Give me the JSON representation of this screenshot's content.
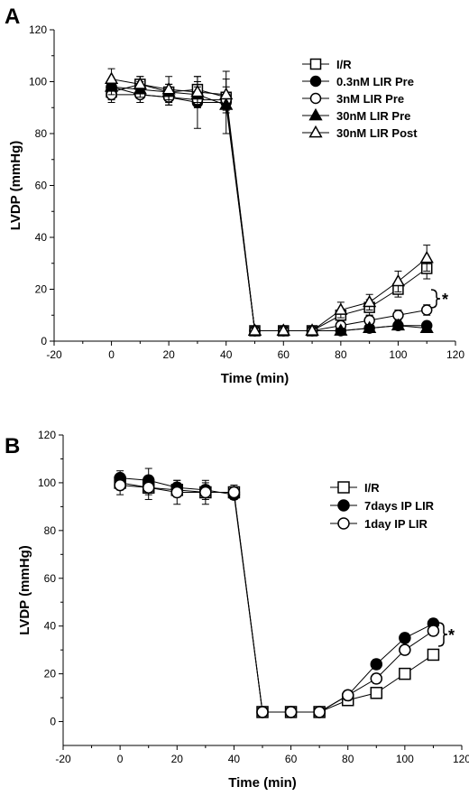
{
  "chart_data": [
    {
      "panel_label": "A",
      "type": "line",
      "xlabel": "Time (min)",
      "ylabel": "LVDP (mmHg)",
      "xlim": [
        -20,
        120
      ],
      "ylim": [
        0,
        120
      ],
      "xticks": [
        -20,
        0,
        20,
        40,
        60,
        80,
        100,
        120
      ],
      "yticks": [
        0,
        20,
        40,
        60,
        80,
        100,
        120
      ],
      "legend_position": "top-right",
      "significance_marker": "*",
      "x": [
        0,
        10,
        20,
        30,
        40,
        50,
        60,
        70,
        80,
        90,
        100,
        110
      ],
      "series": [
        {
          "name": "I/R",
          "marker": "open-square",
          "values": [
            96,
            99,
            96,
            97,
            94,
            4,
            4,
            4,
            10,
            13,
            20,
            28
          ],
          "errors": [
            3,
            3,
            3,
            3,
            4,
            1,
            1,
            1,
            2,
            3,
            3,
            4
          ]
        },
        {
          "name": "0.3nM  LIR Pre",
          "marker": "filled-circle",
          "values": [
            98,
            95,
            94,
            92,
            92,
            4,
            4,
            4,
            4,
            5,
            6,
            6
          ],
          "errors": [
            3,
            3,
            3,
            10,
            12,
            1,
            1,
            1,
            1,
            1,
            1,
            1
          ]
        },
        {
          "name": "3nM    LIR Pre",
          "marker": "open-circle",
          "values": [
            95,
            95,
            94,
            93,
            93,
            4,
            4,
            4,
            6,
            8,
            10,
            12
          ],
          "errors": [
            3,
            3,
            3,
            3,
            3,
            1,
            1,
            1,
            1,
            2,
            2,
            2
          ]
        },
        {
          "name": "30nM   LIR Pre",
          "marker": "filled-triangle",
          "values": [
            98,
            97,
            96,
            95,
            91,
            4,
            4,
            4,
            4,
            5,
            6,
            5
          ],
          "errors": [
            3,
            3,
            3,
            3,
            3,
            1,
            1,
            1,
            1,
            1,
            1,
            1
          ]
        },
        {
          "name": "30nM   LIR Post",
          "marker": "open-triangle",
          "values": [
            101,
            99,
            97,
            96,
            95,
            4,
            4,
            4,
            12,
            15,
            23,
            32
          ],
          "errors": [
            4,
            3,
            5,
            6,
            6,
            1,
            1,
            1,
            3,
            3,
            4,
            5
          ]
        }
      ]
    },
    {
      "panel_label": "B",
      "type": "line",
      "xlabel": "Time (min)",
      "ylabel": "LVDP (mmHg)",
      "xlim": [
        -20,
        120
      ],
      "ylim": [
        -10,
        120
      ],
      "xticks": [
        -20,
        0,
        20,
        40,
        60,
        80,
        100,
        120
      ],
      "yticks": [
        0,
        20,
        40,
        60,
        80,
        100,
        120
      ],
      "legend_position": "top-right",
      "significance_marker": "*",
      "x": [
        0,
        10,
        20,
        30,
        40,
        50,
        60,
        70,
        80,
        90,
        100,
        110
      ],
      "series": [
        {
          "name": "I/R",
          "marker": "open-square",
          "values": [
            100,
            98,
            97,
            96,
            96,
            4,
            4,
            4,
            9,
            12,
            20,
            28
          ],
          "errors": [
            3,
            3,
            3,
            3,
            3,
            1,
            1,
            1,
            2,
            2,
            2,
            2
          ]
        },
        {
          "name": "7days IP LIR",
          "marker": "filled-circle",
          "values": [
            102,
            101,
            98,
            97,
            95,
            4,
            4,
            4,
            11,
            24,
            35,
            41
          ],
          "errors": [
            3,
            5,
            3,
            3,
            2,
            1,
            1,
            1,
            2,
            2,
            2,
            2
          ]
        },
        {
          "name": "1day   IP LIR",
          "marker": "open-circle",
          "values": [
            99,
            98,
            96,
            96,
            96,
            4,
            4,
            4,
            11,
            18,
            30,
            38
          ],
          "errors": [
            4,
            5,
            5,
            5,
            3,
            1,
            1,
            1,
            2,
            2,
            2,
            2
          ]
        }
      ]
    }
  ]
}
